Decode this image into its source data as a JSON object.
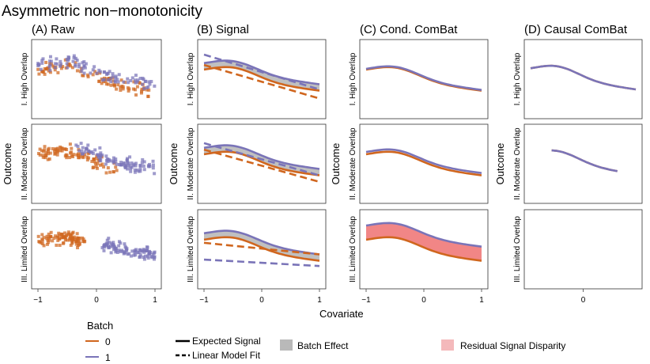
{
  "title": "Asymmetric non−monotonicity",
  "colors": {
    "batch0": "#d0661e",
    "batch1": "#7a74b8",
    "batch_effect_fill": "#b9b9b9",
    "residual_fill": "#f08080",
    "residual_legend_fill": "#f4b9bb",
    "panel_border": "#333333",
    "tick": "#444444"
  },
  "column_titles": [
    "(A) Raw",
    "(B) Signal",
    "(C) Cond. ComBat",
    "(D) Causal ComBat"
  ],
  "row_labels": [
    "I. High Overlap",
    "II. Moderate Overlap",
    "III. Limited Overlap"
  ],
  "y_label": "Outcome",
  "x_label": "Covariate",
  "x_ticks_full": [
    "−1",
    "0",
    "1"
  ],
  "x_ticks_causal": [
    "0"
  ],
  "legend": {
    "batch_title": "Batch",
    "batches": [
      "0",
      "1"
    ],
    "expected_signal": "Expected Signal",
    "linear_fit": "Linear Model Fit",
    "batch_effect": "Batch Effect",
    "residual": "Residual Signal Disparity"
  },
  "chart_data": {
    "type": "faceted-line-scatter",
    "x_range": [
      -1,
      1
    ],
    "y_range": [
      -1.35,
      1.35
    ],
    "grid": false,
    "legend_position": "bottom",
    "facet_columns": [
      "(A) Raw",
      "(B) Signal",
      "(C) Cond. ComBat",
      "(D) Causal ComBat"
    ],
    "facet_rows": [
      "I. High Overlap",
      "II. Moderate Overlap",
      "III. Limited Overlap"
    ],
    "signal_shape": "expected outcome = peak near x = -0.5 decaying toward x = 1",
    "expected_signal": {
      "x": [
        -1.0,
        -0.8,
        -0.6,
        -0.5,
        -0.4,
        -0.2,
        0.0,
        0.2,
        0.4,
        0.6,
        0.8,
        1.0
      ],
      "batch0": [
        0.07,
        0.33,
        0.46,
        0.48,
        0.45,
        0.31,
        0.12,
        -0.06,
        -0.2,
        -0.3,
        -0.37,
        -0.41
      ],
      "batch1": [
        0.32,
        0.58,
        0.71,
        0.73,
        0.7,
        0.56,
        0.37,
        0.19,
        0.05,
        -0.05,
        -0.12,
        -0.16
      ]
    },
    "raw_scatter_trend": [
      {
        "row": "I. High Overlap",
        "batch0_x_range": [
          -1,
          0.9
        ],
        "batch1_x_range": [
          -1,
          1
        ],
        "overlap": "high"
      },
      {
        "row": "II. Moderate Overlap",
        "batch0_x_range": [
          -1,
          0.35
        ],
        "batch1_x_range": [
          -0.35,
          1
        ],
        "overlap": "moderate"
      },
      {
        "row": "III. Limited Overlap",
        "batch0_x_range": [
          -1,
          -0.2
        ],
        "batch1_x_range": [
          0.1,
          1
        ],
        "overlap": "limited"
      }
    ],
    "linear_fit": [
      {
        "row": "I. High Overlap",
        "batch0": [
          [
            -1,
            0.55
          ],
          [
            1,
            -0.75
          ]
        ],
        "batch1": [
          [
            -1,
            0.95
          ],
          [
            1,
            -0.4
          ]
        ]
      },
      {
        "row": "II. Moderate Overlap",
        "batch0": [
          [
            -1,
            0.55
          ],
          [
            1,
            -0.7
          ]
        ],
        "batch1": [
          [
            -1,
            0.8
          ],
          [
            1,
            -0.45
          ]
        ]
      },
      {
        "row": "III. Limited Overlap",
        "batch0": [
          [
            -1,
            0.25
          ],
          [
            1,
            -0.2
          ]
        ],
        "batch1": [
          [
            -1,
            -0.4
          ],
          [
            1,
            -0.65
          ]
        ]
      }
    ],
    "cond_combat_offset": [
      {
        "row": "I. High Overlap",
        "batch1_minus_batch0": 0.03
      },
      {
        "row": "II. Moderate Overlap",
        "batch1_minus_batch0": 0.09
      },
      {
        "row": "III. Limited Overlap",
        "batch1_minus_batch0": 0.55
      }
    ],
    "causal_combat": [
      {
        "row": "I. High Overlap",
        "x_range": [
          -1,
          1
        ]
      },
      {
        "row": "II. Moderate Overlap",
        "x_range": [
          -0.6,
          0.65
        ]
      },
      {
        "row": "III. Limited Overlap",
        "x_range": null
      }
    ]
  }
}
